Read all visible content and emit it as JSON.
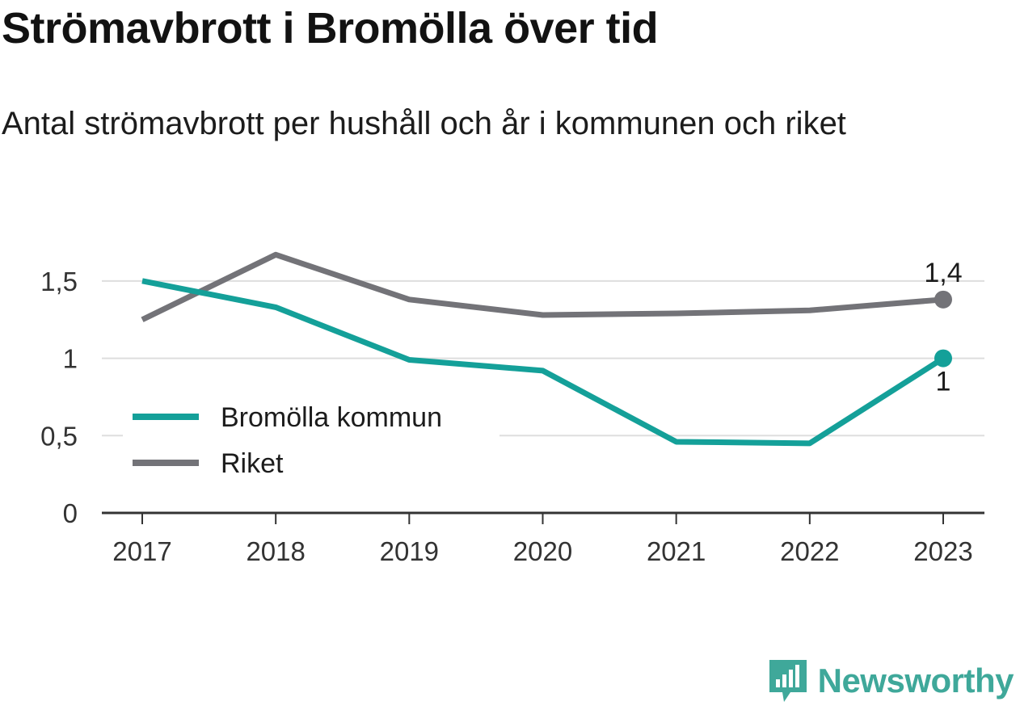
{
  "title": "Strömavbrott i Bromölla över tid",
  "subtitle": "Antal strömavbrott per hushåll och år i kommunen och riket",
  "brand": {
    "name": "Newsworthy",
    "icon": "newsworthy-logo-icon",
    "color": "#3fa89a"
  },
  "chart_data": {
    "type": "line",
    "x": [
      "2017",
      "2018",
      "2019",
      "2020",
      "2021",
      "2022",
      "2023"
    ],
    "series": [
      {
        "name": "Bromölla kommun",
        "color": "#14a099",
        "values": [
          1.5,
          1.33,
          0.99,
          0.92,
          0.46,
          0.45,
          1.0
        ],
        "end_label": "1"
      },
      {
        "name": "Riket",
        "color": "#737378",
        "values": [
          1.25,
          1.67,
          1.38,
          1.28,
          1.29,
          1.31,
          1.38
        ],
        "end_label": "1,4"
      }
    ],
    "ylim": [
      0,
      1.75
    ],
    "yticks": [
      0,
      0.5,
      1,
      1.5
    ],
    "ytick_labels": [
      "0",
      "0,5",
      "1",
      "1,5"
    ],
    "grid": true,
    "legend": "center-left"
  }
}
